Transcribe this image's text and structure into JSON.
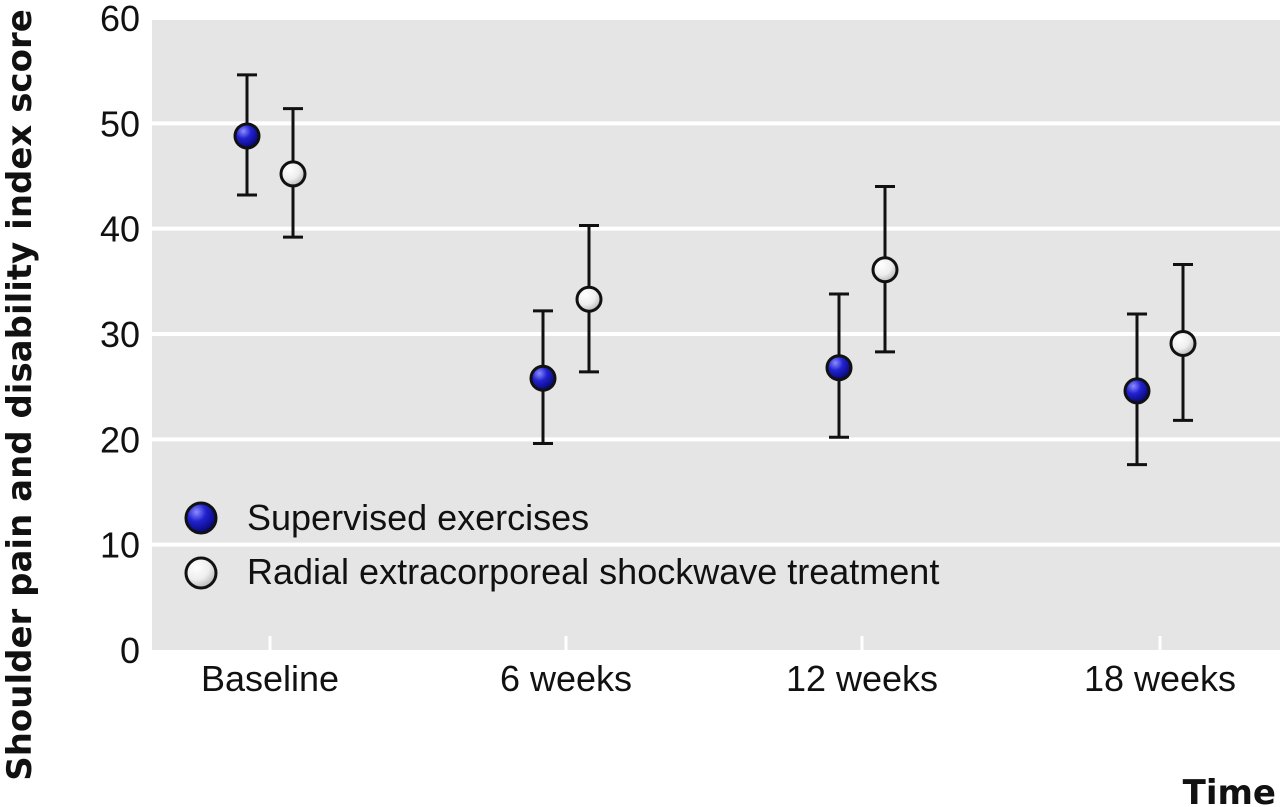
{
  "chart_data": {
    "type": "scatter",
    "title": "",
    "xlabel": "Time",
    "ylabel": "Shoulder pain and disability index score",
    "categories": [
      "Baseline",
      "6 weeks",
      "12 weeks",
      "18 weeks"
    ],
    "ylim": [
      0,
      60
    ],
    "yticks": [
      0,
      10,
      20,
      30,
      40,
      50,
      60
    ],
    "grid": true,
    "legend_position": "bottom-left",
    "series": [
      {
        "name": "Supervised exercises",
        "marker": "filled-circle",
        "color": "#1a1ab8",
        "values": [
          48.8,
          25.8,
          26.8,
          24.6
        ],
        "lower": [
          43.2,
          19.6,
          20.2,
          17.6
        ],
        "upper": [
          54.6,
          32.2,
          33.8,
          31.9
        ]
      },
      {
        "name": "Radial extracorporeal shockwave treatment",
        "marker": "open-circle",
        "color": "#e6e6e6",
        "values": [
          45.2,
          33.3,
          36.1,
          29.1
        ],
        "lower": [
          39.2,
          26.4,
          28.3,
          21.8
        ],
        "upper": [
          51.4,
          40.3,
          44.0,
          36.6
        ]
      }
    ]
  }
}
